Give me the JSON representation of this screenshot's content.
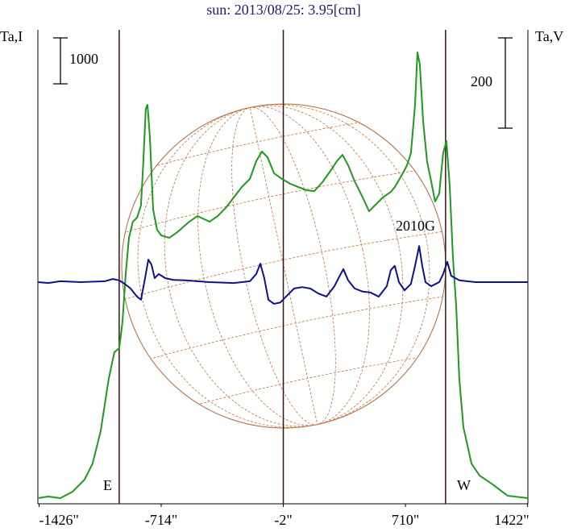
{
  "chart_data": {
    "type": "line",
    "title": "sun: 2013/08/25: 3.95[cm]",
    "ylabel": "Ta,I",
    "y2label": "Ta,V",
    "xlim": [
      -1433,
      1424
    ],
    "ylim": [
      0,
      10316
    ],
    "y2lim": [
      -491,
      559
    ],
    "xticks": [
      {
        "value": -1426,
        "label": "-1426\""
      },
      {
        "value": -714,
        "label": "-714\""
      },
      {
        "value": -2,
        "label": "-2\""
      },
      {
        "value": 710,
        "label": "710\""
      },
      {
        "value": 1422,
        "label": "1422\""
      }
    ],
    "vlines": [
      -959,
      -2,
      944
    ],
    "scale_bars": [
      {
        "value": 1000,
        "axis": "y"
      },
      {
        "value": 200,
        "axis": "y2"
      }
    ],
    "annotations": [
      {
        "text": "E"
      },
      {
        "text": "W"
      },
      {
        "text": "2010G"
      }
    ],
    "series": [
      {
        "name": "Ta,I",
        "color": "#1e9a1e",
        "axis": "y",
        "x": [
          -1433,
          -1372,
          -1302,
          -1231,
          -1161,
          -1114,
          -1067,
          -1020,
          -987,
          -959,
          -940,
          -921,
          -902,
          -879,
          -855,
          -832,
          -818,
          -804,
          -794,
          -780,
          -761,
          -738,
          -714,
          -667,
          -620,
          -550,
          -503,
          -432,
          -385,
          -338,
          -291,
          -244,
          -197,
          -160,
          -127,
          -94,
          -56,
          -9,
          38,
          85,
          132,
          179,
          226,
          273,
          310,
          343,
          376,
          414,
          461,
          498,
          531,
          578,
          625,
          648,
          695,
          719,
          742,
          766,
          780,
          794,
          813,
          836,
          860,
          883,
          907,
          930,
          949,
          968,
          987,
          1006,
          1024,
          1048,
          1095,
          1142,
          1212,
          1306,
          1424
        ],
        "values": [
          123,
          158,
          123,
          263,
          526,
          877,
          1579,
          2719,
          3298,
          3386,
          3947,
          5000,
          5789,
          6140,
          6228,
          6491,
          7456,
          8596,
          8684,
          7982,
          6404,
          5965,
          5842,
          5789,
          5912,
          6140,
          6263,
          6140,
          6263,
          6439,
          6667,
          6895,
          7070,
          7456,
          7667,
          7544,
          7193,
          7070,
          6965,
          6895,
          6825,
          6807,
          7000,
          7246,
          7456,
          7596,
          7368,
          7018,
          6667,
          6368,
          6491,
          6667,
          6789,
          6895,
          7193,
          7368,
          7632,
          8684,
          9825,
          9561,
          8333,
          7456,
          7018,
          6579,
          6754,
          7632,
          7895,
          6930,
          5351,
          4298,
          2719,
          1667,
          877,
          614,
          439,
          175,
          123
        ]
      },
      {
        "name": "Ta,V",
        "color": "#10108c",
        "axis": "y2",
        "x": [
          -1433,
          -1372,
          -1302,
          -1184,
          -1043,
          -996,
          -959,
          -926,
          -893,
          -855,
          -832,
          -808,
          -789,
          -771,
          -752,
          -728,
          -691,
          -644,
          -573,
          -432,
          -291,
          -197,
          -160,
          -136,
          -113,
          -89,
          -56,
          -19,
          14,
          61,
          108,
          155,
          202,
          249,
          296,
          320,
          348,
          376,
          414,
          461,
          507,
          554,
          601,
          625,
          648,
          672,
          705,
          742,
          766,
          790,
          808,
          827,
          860,
          907,
          930,
          954,
          977,
          1024,
          1118,
          1259,
          1424
        ],
        "values": [
          0,
          -2,
          2,
          0,
          2,
          7,
          4,
          -4,
          -14,
          -32,
          -39,
          9,
          50,
          39,
          9,
          18,
          9,
          5,
          4,
          0,
          -2,
          2,
          18,
          41,
          9,
          -39,
          -48,
          -45,
          -32,
          -14,
          -11,
          -14,
          -25,
          -32,
          -9,
          9,
          29,
          4,
          -14,
          -21,
          -23,
          -32,
          -9,
          27,
          36,
          0,
          -18,
          -4,
          36,
          80,
          36,
          0,
          -9,
          0,
          18,
          45,
          14,
          4,
          0,
          0,
          0
        ]
      }
    ]
  }
}
